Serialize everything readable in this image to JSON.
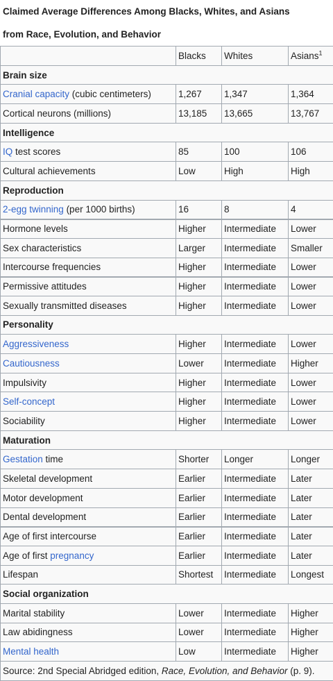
{
  "caption_line1": "Claimed Average Differences Among Blacks, Whites, and Asians",
  "caption_line2": "from Race, Evolution, and Behavior",
  "headers": {
    "blacks": "Blacks",
    "whites": "Whites",
    "asians": "Asians",
    "asians_note": "1"
  },
  "sections": {
    "brain": "Brain size",
    "intelligence": "Intelligence",
    "reproduction": "Reproduction",
    "personality": "Personality",
    "maturation": "Maturation",
    "social": "Social organization"
  },
  "rows": {
    "cranial": {
      "link": "Cranial capacity",
      "rest": " (cubic centimeters)",
      "b": "1,267",
      "w": "1,347",
      "a": "1,364"
    },
    "neurons": {
      "label": "Cortical neurons (millions)",
      "b": "13,185",
      "w": "13,665",
      "a": "13,767"
    },
    "iq": {
      "link": "IQ",
      "rest": " test scores",
      "b": "85",
      "w": "100",
      "a": "106"
    },
    "cultural": {
      "label": "Cultural achievements",
      "b": "Low",
      "w": "High",
      "a": "High"
    },
    "twinning": {
      "link": "2-egg twinning",
      "rest": " (per 1000 births)",
      "b": "16",
      "w": "8",
      "a": "4"
    },
    "hormone": {
      "label": "Hormone levels",
      "b": "Higher",
      "w": "Intermediate",
      "a": "Lower"
    },
    "sexchar": {
      "label": "Sex characteristics",
      "b": "Larger",
      "w": "Intermediate",
      "a": "Smaller"
    },
    "intercourse": {
      "label": "Intercourse frequencies",
      "b": "Higher",
      "w": "Intermediate",
      "a": "Lower"
    },
    "permissive": {
      "label": "Permissive attitudes",
      "b": "Higher",
      "w": "Intermediate",
      "a": "Lower"
    },
    "std": {
      "label": "Sexually transmitted diseases",
      "b": "Higher",
      "w": "Intermediate",
      "a": "Lower"
    },
    "aggressive": {
      "link": "Aggressiveness",
      "b": "Higher",
      "w": "Intermediate",
      "a": "Lower"
    },
    "cautious": {
      "link": "Cautiousness",
      "b": "Lower",
      "w": "Intermediate",
      "a": "Higher"
    },
    "impulsivity": {
      "label": "Impulsivity",
      "b": "Higher",
      "w": "Intermediate",
      "a": "Lower"
    },
    "selfconcept": {
      "link": "Self-concept",
      "b": "Higher",
      "w": "Intermediate",
      "a": "Lower"
    },
    "sociability": {
      "label": "Sociability",
      "b": "Higher",
      "w": "Intermediate",
      "a": "Lower"
    },
    "gestation": {
      "link": "Gestation",
      "rest": " time",
      "b": "Shorter",
      "w": "Longer",
      "a": "Longer"
    },
    "skeletal": {
      "label": "Skeletal development",
      "b": "Earlier",
      "w": "Intermediate",
      "a": "Later"
    },
    "motor": {
      "label": "Motor development",
      "b": "Earlier",
      "w": "Intermediate",
      "a": "Later"
    },
    "dental": {
      "label": "Dental development",
      "b": "Earlier",
      "w": "Intermediate",
      "a": "Later"
    },
    "firstsex": {
      "label": "Age of first intercourse",
      "b": "Earlier",
      "w": "Intermediate",
      "a": "Later"
    },
    "pregnancy": {
      "pre": "Age of first ",
      "link": "pregnancy",
      "b": "Earlier",
      "w": "Intermediate",
      "a": "Later"
    },
    "lifespan": {
      "label": "Lifespan",
      "b": "Shortest",
      "w": "Intermediate",
      "a": "Longest"
    },
    "marital": {
      "label": "Marital stability",
      "b": "Lower",
      "w": "Intermediate",
      "a": "Higher"
    },
    "law": {
      "label": "Law abidingness",
      "b": "Lower",
      "w": "Intermediate",
      "a": "Higher"
    },
    "mental": {
      "link": "Mental health",
      "b": "Low",
      "w": "Intermediate",
      "a": "Higher"
    }
  },
  "source": {
    "pre": "Source: 2nd Special Abridged edition, ",
    "title": "Race, Evolution, and Behavior",
    "post": " (p. 9)."
  }
}
